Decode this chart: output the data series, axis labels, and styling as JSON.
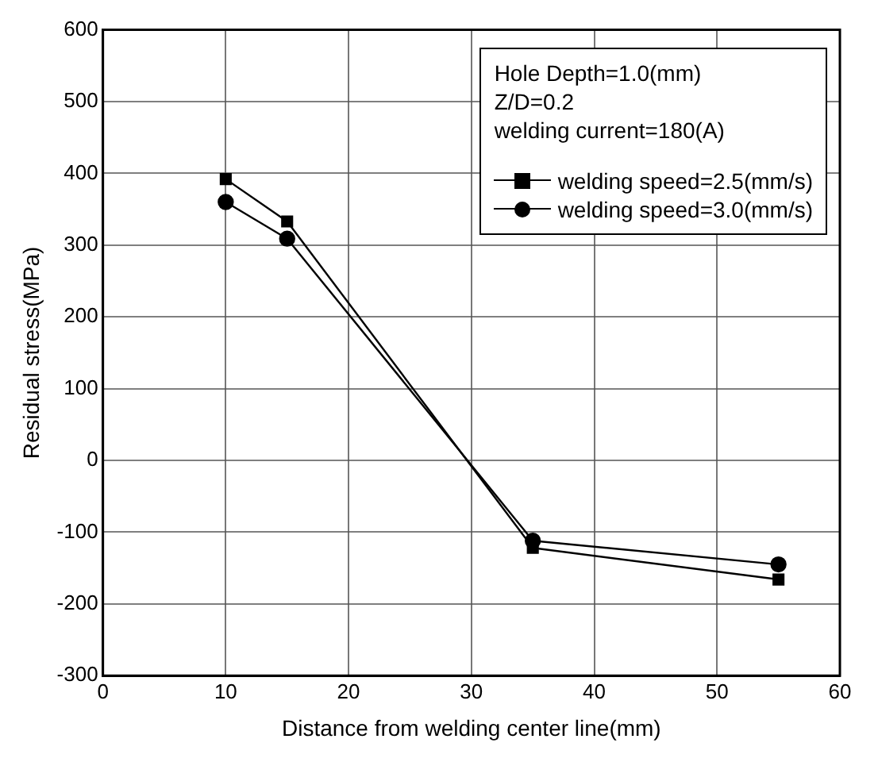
{
  "chart_data": {
    "type": "line",
    "xlabel": "Distance from welding center line(mm)",
    "ylabel": "Residual stress(MPa)",
    "annotations": [
      "Hole Depth=1.0(mm)",
      "Z/D=0.2",
      "welding current=180(A)"
    ],
    "series": [
      {
        "name": "welding speed=2.5(mm/s)",
        "color": "#000000",
        "marker": "square",
        "x": [
          10,
          15,
          35,
          55
        ],
        "values": [
          392,
          333,
          -122,
          -166
        ]
      },
      {
        "name": "welding speed=3.0(mm/s)",
        "color": "#000000",
        "marker": "circle",
        "x": [
          10,
          15,
          35,
          55
        ],
        "values": [
          360,
          309,
          -112,
          -145
        ]
      }
    ],
    "xlim": [
      0,
      60
    ],
    "xticks": [
      0,
      10,
      20,
      30,
      40,
      50,
      60
    ],
    "ylim": [
      -300,
      600
    ],
    "yticks": [
      -300,
      -200,
      -100,
      0,
      100,
      200,
      300,
      400,
      500,
      600
    ],
    "grid": true,
    "legend": "top right",
    "line_style": "solid"
  }
}
